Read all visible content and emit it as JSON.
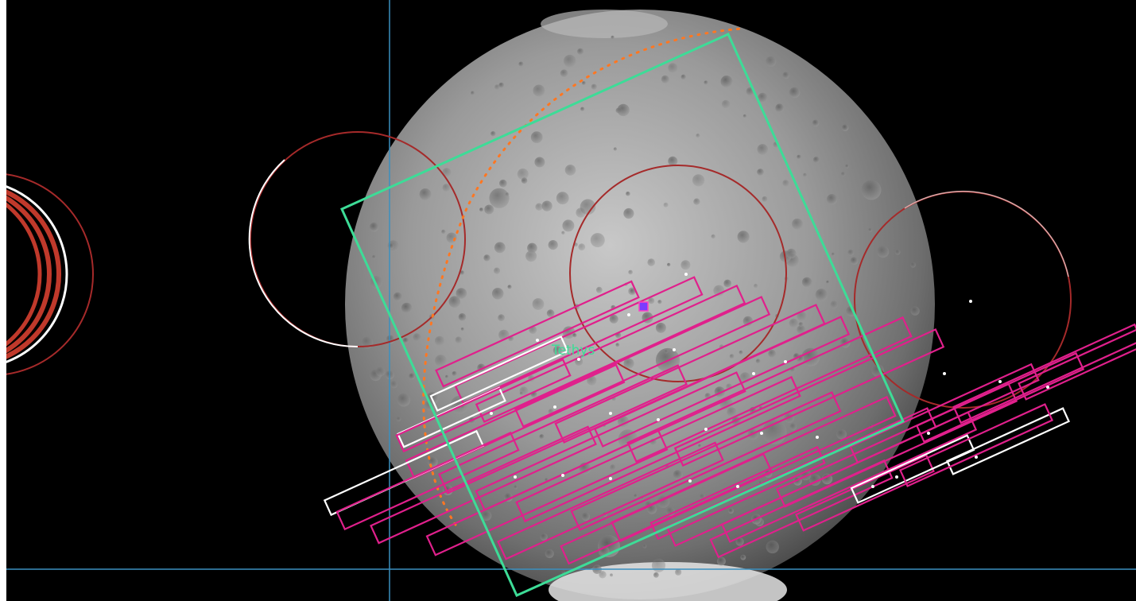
{
  "viewer": {
    "target_label": "Tethys",
    "colors": {
      "background": "#000000",
      "crosshair": "#3a8fbf",
      "fov_frame": "#3ddc97",
      "footprint": "#e0208c",
      "footprint_alt": "#ffffff",
      "ring": "#a52a2a",
      "limb_trace": "#ff7722",
      "label": "#3ddc97",
      "marker": "#7a3cff"
    }
  }
}
